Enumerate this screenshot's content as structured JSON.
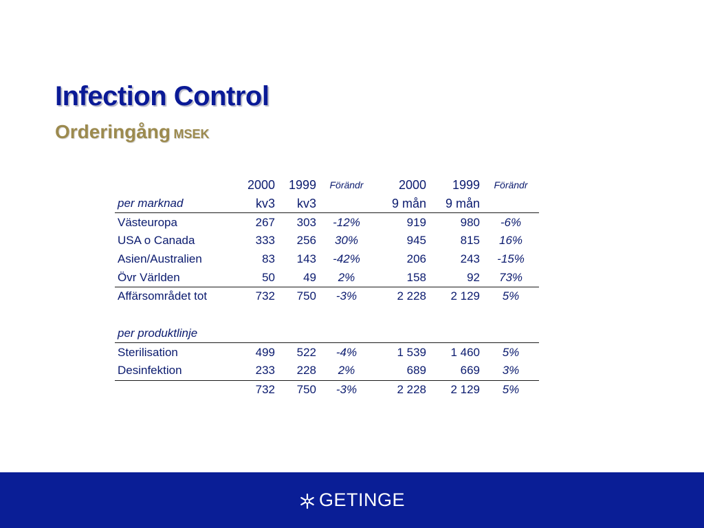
{
  "slide": {
    "title": "Infection Control",
    "subtitle": "Orderingång",
    "subtitle_unit": "MSEK"
  },
  "table": {
    "header_row1": [
      "",
      "2000",
      "1999",
      "Förändr",
      "2000",
      "1999",
      "Förändr"
    ],
    "header_row2": [
      "per marknad",
      "kv3",
      "kv3",
      "",
      "9 mån",
      "9 mån",
      ""
    ],
    "market_rows": [
      [
        "Västeuropa",
        "267",
        "303",
        "-12%",
        "919",
        "980",
        "-6%"
      ],
      [
        "USA o Canada",
        "333",
        "256",
        "30%",
        "945",
        "815",
        "16%"
      ],
      [
        "Asien/Australien",
        "83",
        "143",
        "-42%",
        "206",
        "243",
        "-15%"
      ],
      [
        "Övr Världen",
        "50",
        "49",
        "2%",
        "158",
        "92",
        "73%"
      ]
    ],
    "market_total": [
      "Affärsområdet tot",
      "732",
      "750",
      "-3%",
      "2 228",
      "2 129",
      "5%"
    ],
    "product_section_label": "per produktlinje",
    "product_rows": [
      [
        "Sterilisation",
        "499",
        "522",
        "-4%",
        "1 539",
        "1 460",
        "5%"
      ],
      [
        "Desinfektion",
        "233",
        "228",
        "2%",
        "689",
        "669",
        "3%"
      ]
    ],
    "product_total": [
      "",
      "732",
      "750",
      "-3%",
      "2 228",
      "2 129",
      "5%"
    ]
  },
  "footer": {
    "brand": "GETINGE",
    "logo_icon": "getinge-snowflake-icon",
    "background_color": "#0a1e96"
  },
  "colors": {
    "title": "#0a1a96",
    "subtitle": "#9c8a4e",
    "table_text": "#0a1a6e"
  }
}
